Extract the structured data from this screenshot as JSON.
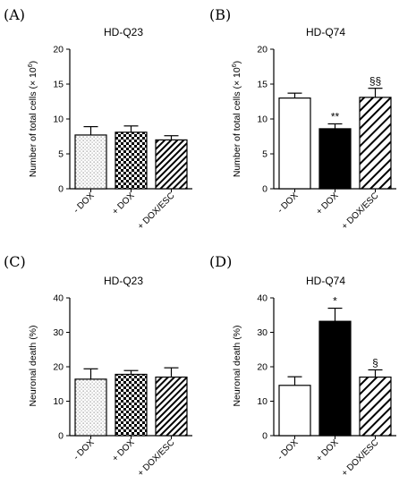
{
  "chart_data": [
    {
      "type": "bar",
      "panel": "(A)",
      "title": "HD-Q23",
      "ylabel": "Number of total cells (× 10",
      "ylabel_sup": "6",
      "ylabel_end": ")",
      "ylim": [
        0,
        20
      ],
      "yticks": [
        "0",
        "5",
        "10",
        "15",
        "20"
      ],
      "categories": [
        "- DOX",
        "+ DOX",
        "+ DOX/ESC"
      ],
      "values": [
        7.7,
        8.1,
        7.0
      ],
      "errors": [
        1.2,
        0.9,
        0.6
      ],
      "fills": [
        "dots",
        "checker",
        "hatch-dense"
      ],
      "annotations": [
        "",
        "",
        ""
      ]
    },
    {
      "type": "bar",
      "panel": "(B)",
      "title": "HD-Q74",
      "ylabel": "Number of total cells (× 10",
      "ylabel_sup": "6",
      "ylabel_end": ")",
      "ylim": [
        0,
        20
      ],
      "yticks": [
        "0",
        "5",
        "10",
        "15",
        "20"
      ],
      "categories": [
        "- DOX",
        "+ DOX",
        "+ DOX/ESC"
      ],
      "values": [
        13.0,
        8.6,
        13.1
      ],
      "errors": [
        0.7,
        0.7,
        1.3
      ],
      "fills": [
        "white",
        "black",
        "hatch-wide"
      ],
      "annotations": [
        "",
        "**",
        "§§"
      ]
    },
    {
      "type": "bar",
      "panel": "(C)",
      "title": "HD-Q23",
      "ylabel": "Neuronal death (%)",
      "ylabel_sup": "",
      "ylabel_end": "",
      "ylim": [
        0,
        40
      ],
      "yticks": [
        "0",
        "10",
        "20",
        "30",
        "40"
      ],
      "categories": [
        "- DOX",
        "+ DOX",
        "+ DOX/ESC"
      ],
      "values": [
        16.4,
        17.8,
        17.0
      ],
      "errors": [
        3.0,
        1.1,
        2.7
      ],
      "fills": [
        "dots",
        "checker",
        "hatch-dense"
      ],
      "annotations": [
        "",
        "",
        ""
      ]
    },
    {
      "type": "bar",
      "panel": "(D)",
      "title": "HD-Q74",
      "ylabel": "Neuronal death (%)",
      "ylabel_sup": "",
      "ylabel_end": "",
      "ylim": [
        0,
        40
      ],
      "yticks": [
        "0",
        "10",
        "20",
        "30",
        "40"
      ],
      "categories": [
        "- DOX",
        "+ DOX",
        "+ DOX/ESC"
      ],
      "values": [
        14.6,
        33.2,
        17.0
      ],
      "errors": [
        2.5,
        3.8,
        2.1
      ],
      "fills": [
        "white",
        "black",
        "hatch-wide"
      ],
      "annotations": [
        "",
        "*",
        "§"
      ]
    }
  ]
}
